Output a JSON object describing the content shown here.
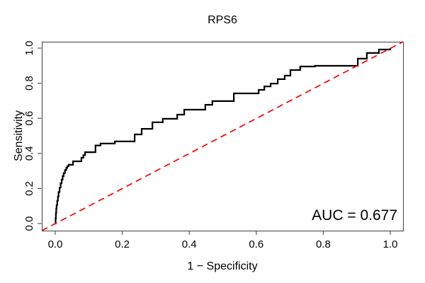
{
  "title": "RPS6",
  "annotation": {
    "auc_label": "AUC = 0.677"
  },
  "colors": {
    "curve": "#000000",
    "diagonal": "#ff0000",
    "frame": "#4d4d4d",
    "text": "#000000",
    "background": "#ffffff"
  },
  "chart_data": {
    "type": "line",
    "title": "RPS6",
    "xlabel": "1 − Specificity",
    "ylabel": "Sensitivity",
    "xlim": [
      0,
      1
    ],
    "ylim": [
      0,
      1
    ],
    "grid": false,
    "box": true,
    "legend_position": "none",
    "x_ticks": {
      "values": [
        0.0,
        0.2,
        0.4,
        0.6,
        0.8,
        1.0
      ],
      "labels": [
        "0.0",
        "0.2",
        "0.4",
        "0.6",
        "0.8",
        "1.0"
      ]
    },
    "y_ticks": {
      "values": [
        0.0,
        0.2,
        0.4,
        0.6,
        0.8,
        1.0
      ],
      "labels": [
        "0.0",
        "0.2",
        "0.4",
        "0.6",
        "0.8",
        "1.0"
      ]
    },
    "series": [
      {
        "name": "ROC curve",
        "draw": "step",
        "color": "#000000",
        "line_width": 2.2,
        "points": [
          [
            0.0,
            0.0
          ],
          [
            0.001,
            0.03
          ],
          [
            0.002,
            0.06
          ],
          [
            0.003,
            0.085
          ],
          [
            0.004,
            0.105
          ],
          [
            0.006,
            0.13
          ],
          [
            0.008,
            0.155
          ],
          [
            0.01,
            0.18
          ],
          [
            0.013,
            0.205
          ],
          [
            0.016,
            0.23
          ],
          [
            0.019,
            0.25
          ],
          [
            0.022,
            0.27
          ],
          [
            0.025,
            0.288
          ],
          [
            0.029,
            0.305
          ],
          [
            0.033,
            0.318
          ],
          [
            0.036,
            0.327
          ],
          [
            0.04,
            0.335
          ],
          [
            0.053,
            0.355
          ],
          [
            0.078,
            0.375
          ],
          [
            0.084,
            0.39
          ],
          [
            0.089,
            0.407
          ],
          [
            0.12,
            0.445
          ],
          [
            0.135,
            0.456
          ],
          [
            0.178,
            0.468
          ],
          [
            0.237,
            0.508
          ],
          [
            0.258,
            0.54
          ],
          [
            0.29,
            0.577
          ],
          [
            0.321,
            0.597
          ],
          [
            0.364,
            0.621
          ],
          [
            0.385,
            0.649
          ],
          [
            0.448,
            0.677
          ],
          [
            0.469,
            0.698
          ],
          [
            0.533,
            0.742
          ],
          [
            0.607,
            0.762
          ],
          [
            0.624,
            0.782
          ],
          [
            0.643,
            0.798
          ],
          [
            0.664,
            0.823
          ],
          [
            0.685,
            0.843
          ],
          [
            0.702,
            0.875
          ],
          [
            0.731,
            0.895
          ],
          [
            0.775,
            0.899
          ],
          [
            0.903,
            0.94
          ],
          [
            0.93,
            0.972
          ],
          [
            0.966,
            0.992
          ],
          [
            1.0,
            1.0
          ]
        ]
      },
      {
        "name": "chance reference diagonal",
        "draw": "straight",
        "color": "#ff0000",
        "line_width": 1.7,
        "dash": [
          9,
          6
        ],
        "points": [
          [
            0,
            0
          ],
          [
            1,
            1
          ]
        ]
      }
    ],
    "annotations": [
      {
        "text": "AUC = 0.677",
        "x": 1.0,
        "y": 0.02,
        "align": "right"
      }
    ]
  }
}
